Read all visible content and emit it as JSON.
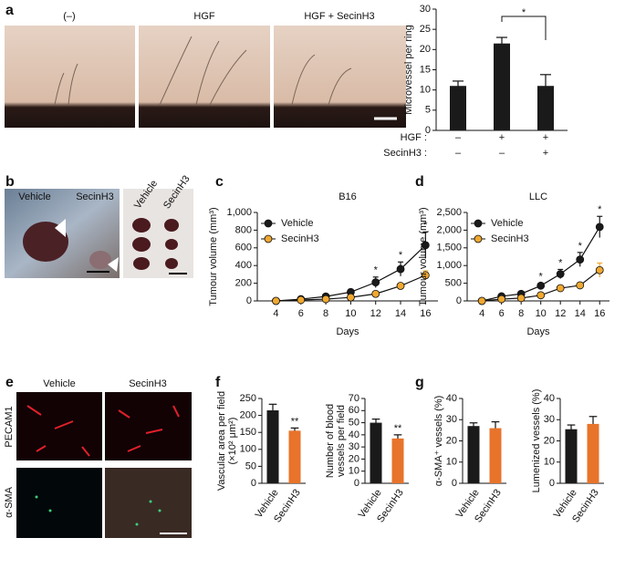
{
  "figure": {
    "panel_letters": [
      "a",
      "b",
      "c",
      "d",
      "e",
      "f",
      "g"
    ],
    "photo_labels_a": [
      "(–)",
      "HGF",
      "HGF + SecinH3"
    ],
    "photo_labels_b": [
      "Vehicle",
      "SecinH3",
      "Vehicle",
      "SecinH3"
    ],
    "photo_labels_e": [
      "Vehicle",
      "SecinH3"
    ],
    "row_labels_e": [
      "PECAM1",
      "α-SMA"
    ]
  },
  "chart_data": [
    {
      "type": "bar",
      "ylabel": [
        "Microvessel per ring"
      ],
      "categories": [
        null,
        null,
        null
      ],
      "x_rows": [
        {
          "label": "HGF :",
          "values": [
            "–",
            "+",
            "+"
          ]
        },
        {
          "label": "SecinH3 :",
          "values": [
            "–",
            "–",
            "+"
          ]
        }
      ],
      "values": [
        11,
        21.5,
        11
      ],
      "errors": [
        1.2,
        1.5,
        2.8
      ],
      "colors": [
        "#1a1a1a",
        "#1a1a1a",
        "#1a1a1a"
      ],
      "ylim": [
        0,
        30
      ],
      "yticks": [
        0,
        5,
        10,
        15,
        20,
        25,
        30
      ],
      "annotation": "*"
    },
    {
      "type": "line",
      "title": "B16",
      "ylabel": [
        "Tumour volume (mm³)"
      ],
      "xlabel": "Days",
      "x": [
        4,
        6,
        8,
        10,
        12,
        14,
        16
      ],
      "xlim": [
        2.5,
        17
      ],
      "xticks": [
        4,
        6,
        8,
        10,
        12,
        14,
        16
      ],
      "ylim": [
        0,
        1000
      ],
      "yticks": [
        0,
        200,
        400,
        600,
        800,
        {
          "value": 1000,
          "label": "1,000"
        }
      ],
      "series": [
        {
          "name": "Vehicle",
          "color": "#1a1a1a",
          "values": [
            0,
            20,
            50,
            100,
            210,
            360,
            630
          ],
          "errors": [
            5,
            10,
            15,
            30,
            60,
            80,
            150
          ]
        },
        {
          "name": "SecinH3",
          "color": "#f0a830",
          "values": [
            0,
            10,
            20,
            40,
            80,
            170,
            290
          ],
          "errors": [
            3,
            5,
            8,
            15,
            20,
            25,
            50
          ]
        }
      ],
      "significance": [
        null,
        null,
        null,
        null,
        "*",
        "*",
        "*"
      ]
    },
    {
      "type": "line",
      "title": "LLC",
      "ylabel": [
        "Tumour volume (mm³)"
      ],
      "xlabel": "Days",
      "x": [
        4,
        6,
        8,
        10,
        12,
        14,
        16
      ],
      "xlim": [
        2.5,
        17
      ],
      "xticks": [
        4,
        6,
        8,
        10,
        12,
        14,
        16
      ],
      "ylim": [
        0,
        2500
      ],
      "yticks": [
        0,
        500,
        {
          "value": 1000,
          "label": "1,000"
        },
        {
          "value": 1500,
          "label": "1,500"
        },
        {
          "value": 2000,
          "label": "2,000"
        },
        {
          "value": 2500,
          "label": "2,500"
        }
      ],
      "series": [
        {
          "name": "Vehicle",
          "color": "#1a1a1a",
          "values": [
            0,
            130,
            200,
            430,
            760,
            1170,
            2090
          ],
          "errors": [
            20,
            30,
            40,
            70,
            130,
            200,
            300
          ]
        },
        {
          "name": "SecinH3",
          "color": "#f0a830",
          "values": [
            0,
            50,
            80,
            160,
            360,
            440,
            870
          ],
          "errors": [
            10,
            15,
            20,
            40,
            60,
            80,
            200
          ]
        }
      ],
      "significance": [
        null,
        null,
        null,
        "*",
        "*",
        "*",
        "*"
      ]
    },
    {
      "type": "bar",
      "ylabel": [
        "Vascular area per field",
        "(×10² μm²)"
      ],
      "categories": [
        "Vehicle",
        "SecinH3"
      ],
      "values": [
        215,
        155
      ],
      "errors": [
        18,
        8
      ],
      "colors": [
        "#1a1a1a",
        "#e8732a"
      ],
      "ylim": [
        0,
        250
      ],
      "yticks": [
        0,
        50,
        100,
        150,
        200,
        250
      ],
      "significance": [
        null,
        "**"
      ]
    },
    {
      "type": "bar",
      "ylabel": [
        "Number of blood",
        "vessels per field"
      ],
      "categories": [
        "Vehicle",
        "SecinH3"
      ],
      "values": [
        50,
        37
      ],
      "errors": [
        3,
        3
      ],
      "colors": [
        "#1a1a1a",
        "#e8732a"
      ],
      "ylim": [
        0,
        70
      ],
      "yticks": [
        0,
        10,
        20,
        30,
        40,
        50,
        60,
        70
      ],
      "significance": [
        null,
        "**"
      ]
    },
    {
      "type": "bar",
      "ylabel": [
        "α-SMA⁺ vessels (%)"
      ],
      "categories": [
        "Vehicle",
        "SecinH3"
      ],
      "values": [
        27,
        26
      ],
      "errors": [
        1.5,
        3
      ],
      "colors": [
        "#1a1a1a",
        "#e8732a"
      ],
      "ylim": [
        0,
        40
      ],
      "yticks": [
        0,
        10,
        20,
        30,
        40
      ]
    },
    {
      "type": "bar",
      "ylabel": [
        "Lumenized vessels (%)"
      ],
      "categories": [
        "Vehicle",
        "SecinH3"
      ],
      "values": [
        25.5,
        28
      ],
      "errors": [
        2,
        3.5
      ],
      "colors": [
        "#1a1a1a",
        "#e8732a"
      ],
      "ylim": [
        0,
        40
      ],
      "yticks": [
        0,
        10,
        20,
        30,
        40
      ]
    }
  ]
}
